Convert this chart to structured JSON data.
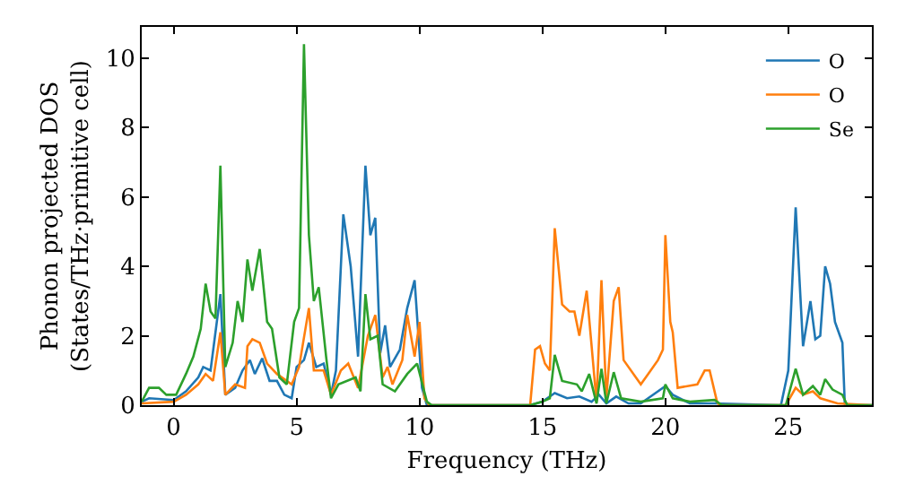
{
  "chart_data": {
    "type": "line",
    "xlabel": "Frequency (THz)",
    "ylabel": "Phonon projected DOS\n(States/THz·primitive cell)",
    "xlim": [
      -1.3,
      28.4
    ],
    "ylim": [
      0,
      10.9
    ],
    "xticks": [
      0,
      5,
      10,
      15,
      20,
      25
    ],
    "yticks": [
      0,
      2,
      4,
      6,
      8,
      10
    ],
    "legend": "top right",
    "marker": "none",
    "line_style": "solid",
    "series": [
      {
        "name": "O",
        "color": "#1f77b4",
        "x": [
          -1.3,
          -1,
          0,
          0.5,
          1,
          1.2,
          1.5,
          1.9,
          2.1,
          2.5,
          2.8,
          3.1,
          3.3,
          3.6,
          3.9,
          4.2,
          4.5,
          4.8,
          5,
          5.3,
          5.5,
          5.8,
          6.1,
          6.4,
          6.6,
          6.9,
          7.2,
          7.5,
          7.8,
          8.0,
          8.2,
          8.4,
          8.6,
          8.8,
          9.2,
          9.5,
          9.8,
          10.1,
          10.3,
          14.5,
          15,
          15.5,
          16,
          16.5,
          17,
          17.3,
          17.6,
          18,
          18.5,
          19,
          20,
          20.3,
          21,
          22,
          24.7,
          25,
          25.3,
          25.6,
          25.9,
          26.1,
          26.3,
          26.5,
          26.7,
          26.9,
          27.2,
          27.3,
          28.4
        ],
        "values": [
          0.1,
          0.2,
          0.15,
          0.4,
          0.8,
          1.1,
          1.0,
          3.2,
          0.3,
          0.5,
          1.0,
          1.3,
          0.9,
          1.35,
          0.7,
          0.7,
          0.3,
          0.2,
          1.1,
          1.3,
          1.8,
          1.1,
          1.2,
          0.3,
          1.0,
          5.5,
          4.0,
          1.4,
          6.9,
          4.9,
          5.4,
          1.5,
          2.3,
          1.1,
          1.6,
          2.8,
          3.6,
          0.5,
          0,
          0,
          0.1,
          0.35,
          0.2,
          0.25,
          0.1,
          0.3,
          0.05,
          0.25,
          0.05,
          0.05,
          0.55,
          0.3,
          0.05,
          0.05,
          0,
          1.0,
          5.7,
          1.7,
          3.0,
          1.9,
          2.0,
          4.0,
          3.5,
          2.4,
          1.8,
          0,
          0
        ]
      },
      {
        "name": "O",
        "color": "#ff7f0e",
        "x": [
          -1.3,
          0,
          0.5,
          1,
          1.3,
          1.6,
          1.9,
          2.1,
          2.5,
          2.9,
          3.0,
          3.2,
          3.5,
          3.8,
          4.2,
          4.8,
          5.1,
          5.5,
          5.7,
          6.1,
          6.4,
          6.8,
          7.1,
          7.5,
          7.9,
          8.2,
          8.5,
          8.7,
          8.9,
          9.3,
          9.5,
          9.8,
          10.0,
          10.2,
          10.4,
          14.5,
          14.7,
          14.9,
          15.1,
          15.3,
          15.5,
          15.8,
          16.1,
          16.3,
          16.5,
          16.8,
          17.2,
          17.4,
          17.6,
          17.9,
          18.1,
          18.3,
          18.8,
          19.0,
          19.3,
          19.7,
          19.9,
          20.0,
          20.2,
          20.3,
          20.5,
          21.3,
          21.6,
          21.8,
          22.1,
          22.2,
          24.9,
          25.3,
          25.6,
          26,
          26.3,
          27,
          28.4
        ],
        "values": [
          0.05,
          0.1,
          0.3,
          0.6,
          0.9,
          0.7,
          2.1,
          0.3,
          0.6,
          0.5,
          1.7,
          1.9,
          1.8,
          1.2,
          0.9,
          0.6,
          1.1,
          2.8,
          1.0,
          1.0,
          0.3,
          1.0,
          1.2,
          0.5,
          2.0,
          2.6,
          0.8,
          1.1,
          0.6,
          1.3,
          2.6,
          1.4,
          2.4,
          0.2,
          0,
          0,
          1.6,
          1.7,
          1.2,
          1.0,
          5.1,
          2.9,
          2.7,
          2.7,
          2.0,
          3.3,
          0.1,
          3.6,
          0.2,
          3.0,
          3.4,
          1.3,
          0.8,
          0.6,
          0.9,
          1.3,
          1.6,
          4.9,
          2.4,
          2.1,
          0.5,
          0.6,
          1.0,
          1.0,
          0.1,
          0,
          0,
          0.5,
          0.3,
          0.4,
          0.2,
          0.05,
          0
        ]
      },
      {
        "name": "Se",
        "color": "#2ca02c",
        "x": [
          -1.3,
          -1,
          -0.6,
          -0.3,
          0.1,
          0.5,
          0.8,
          1.1,
          1.3,
          1.5,
          1.7,
          1.9,
          2.1,
          2.4,
          2.6,
          2.8,
          3.0,
          3.2,
          3.5,
          3.8,
          4.0,
          4.3,
          4.6,
          4.9,
          5.1,
          5.3,
          5.5,
          5.7,
          5.9,
          6.2,
          6.4,
          6.7,
          7.4,
          7.6,
          7.8,
          8.0,
          8.3,
          8.5,
          9.0,
          9.5,
          9.9,
          10.3,
          10.5,
          14.5,
          15,
          15.3,
          15.5,
          15.8,
          16.4,
          16.6,
          16.9,
          17.2,
          17.4,
          17.6,
          17.9,
          18.2,
          19,
          19.9,
          20.0,
          20.3,
          21,
          22,
          22.3,
          24.9,
          25.3,
          25.6,
          26.0,
          26.3,
          26.5,
          26.8,
          27.2,
          27.4,
          28.4
        ],
        "values": [
          0.1,
          0.5,
          0.5,
          0.3,
          0.3,
          0.9,
          1.4,
          2.2,
          3.5,
          2.7,
          2.5,
          6.9,
          1.1,
          1.8,
          3.0,
          2.4,
          4.2,
          3.3,
          4.5,
          2.4,
          2.2,
          0.8,
          0.6,
          2.4,
          2.8,
          10.4,
          4.9,
          3.0,
          3.4,
          1.4,
          0.2,
          0.6,
          0.8,
          0.4,
          3.2,
          1.9,
          2.0,
          0.6,
          0.4,
          0.9,
          1.2,
          0.1,
          0,
          0,
          0.1,
          0.2,
          1.45,
          0.7,
          0.6,
          0.4,
          0.9,
          0.05,
          1.05,
          0.05,
          0.95,
          0.2,
          0.1,
          0.2,
          0.6,
          0.2,
          0.1,
          0.15,
          0,
          0,
          1.05,
          0.3,
          0.55,
          0.3,
          0.75,
          0.45,
          0.3,
          0,
          0
        ]
      }
    ]
  }
}
